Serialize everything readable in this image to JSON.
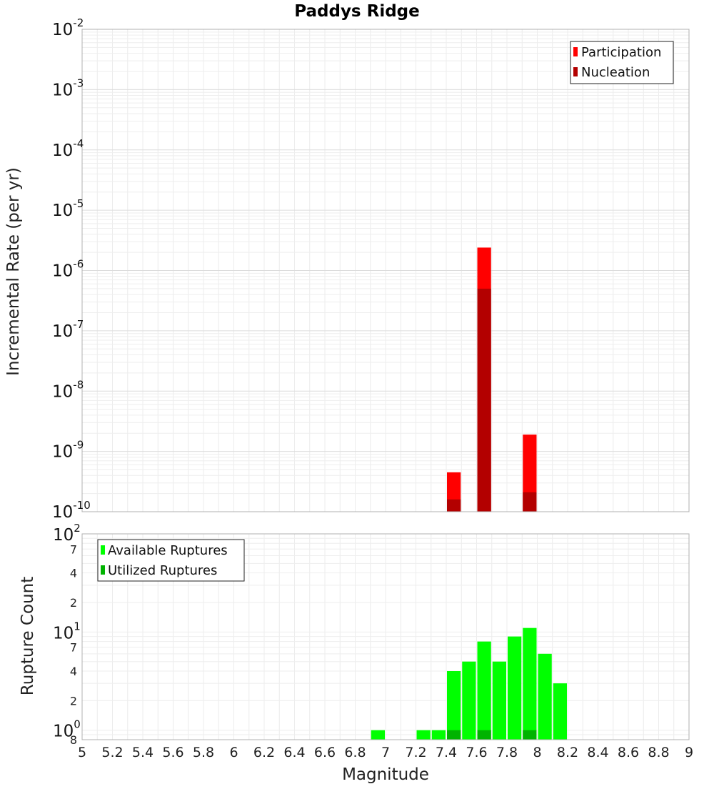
{
  "chart_data": [
    {
      "type": "bar",
      "title": "Paddys Ridge",
      "ylabel": "Incremental Rate (per yr)",
      "xlabel": "",
      "xlim": [
        5,
        9
      ],
      "ylim": [
        1e-10,
        0.01
      ],
      "y_scale": "log",
      "y_ticks": [
        {
          "base": "10",
          "exp": "-2"
        },
        {
          "base": "10",
          "exp": "-3"
        },
        {
          "base": "10",
          "exp": "-4"
        },
        {
          "base": "10",
          "exp": "-5"
        },
        {
          "base": "10",
          "exp": "-6"
        },
        {
          "base": "10",
          "exp": "-7"
        },
        {
          "base": "10",
          "exp": "-8"
        },
        {
          "base": "10",
          "exp": "-9"
        },
        {
          "base": "10",
          "exp": "-10"
        }
      ],
      "grid": true,
      "legend_position": "top-right",
      "series": [
        {
          "name": "Participation",
          "color": "#ff0000",
          "points": [
            {
              "x": 7.45,
              "y": 4.5e-10
            },
            {
              "x": 7.65,
              "y": 2.4e-06
            },
            {
              "x": 7.95,
              "y": 1.9e-09
            }
          ]
        },
        {
          "name": "Nucleation",
          "color": "#b30000",
          "points": [
            {
              "x": 7.45,
              "y": 1.6e-10
            },
            {
              "x": 7.65,
              "y": 5e-07
            },
            {
              "x": 7.95,
              "y": 2.1e-10
            }
          ]
        }
      ]
    },
    {
      "type": "bar",
      "ylabel": "Rupture Count",
      "xlabel": "Magnitude",
      "xlim": [
        5,
        9
      ],
      "ylim": [
        0.8,
        100
      ],
      "y_scale": "log",
      "x_ticks": [
        "5",
        "5.2",
        "5.4",
        "5.6",
        "5.8",
        "6",
        "6.2",
        "6.4",
        "6.6",
        "6.8",
        "7",
        "7.2",
        "7.4",
        "7.6",
        "7.8",
        "8",
        "8.2",
        "8.4",
        "8.6",
        "8.8",
        "9"
      ],
      "y_major_ticks": [
        {
          "base": "10",
          "exp": "2"
        },
        {
          "base": "10",
          "exp": "1"
        },
        {
          "base": "10",
          "exp": "0"
        }
      ],
      "y_minor_ticks": [
        "7",
        "4",
        "2",
        "7",
        "4",
        "2",
        "8"
      ],
      "grid": true,
      "legend_position": "top-left",
      "series": [
        {
          "name": "Available Ruptures",
          "color": "#00ff00",
          "points": [
            {
              "x": 6.95,
              "y": 1
            },
            {
              "x": 7.25,
              "y": 1
            },
            {
              "x": 7.35,
              "y": 1
            },
            {
              "x": 7.45,
              "y": 4
            },
            {
              "x": 7.55,
              "y": 5
            },
            {
              "x": 7.65,
              "y": 8
            },
            {
              "x": 7.75,
              "y": 5
            },
            {
              "x": 7.85,
              "y": 9
            },
            {
              "x": 7.95,
              "y": 11
            },
            {
              "x": 8.05,
              "y": 6
            },
            {
              "x": 8.15,
              "y": 3
            }
          ]
        },
        {
          "name": "Utilized Ruptures",
          "color": "#00b300",
          "points": [
            {
              "x": 7.45,
              "y": 1
            },
            {
              "x": 7.65,
              "y": 1
            },
            {
              "x": 7.95,
              "y": 1
            }
          ]
        }
      ]
    }
  ]
}
